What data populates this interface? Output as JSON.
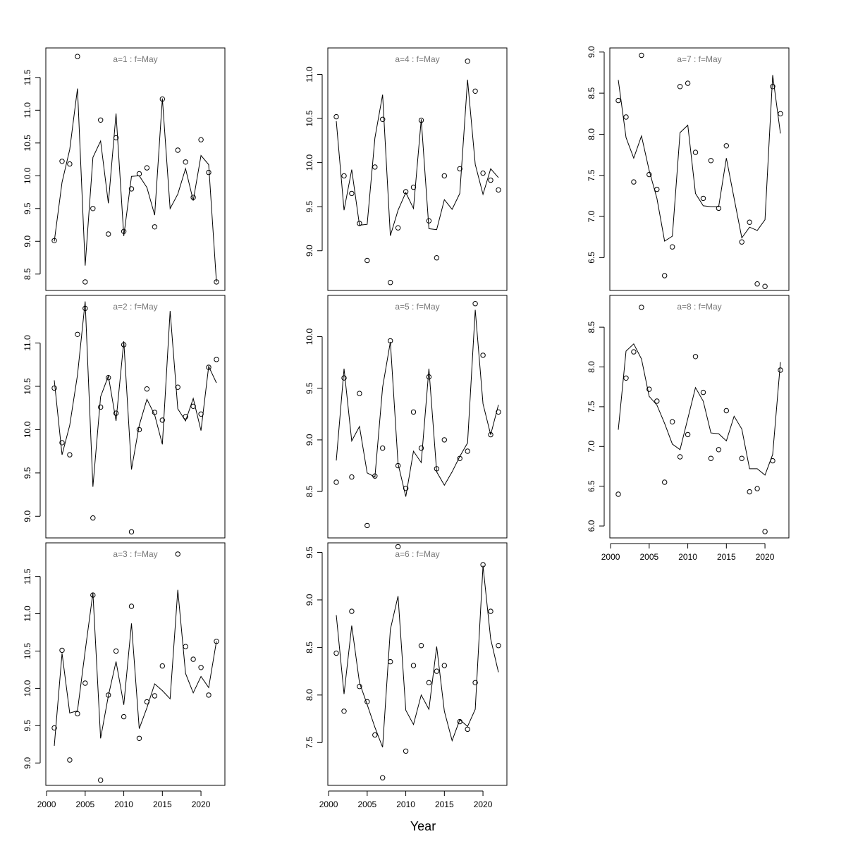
{
  "xlabel": "Year",
  "chart_data": [
    {
      "type": "scatter",
      "title": "a=1  :  f=May",
      "x": [
        2001,
        2002,
        2003,
        2004,
        2005,
        2006,
        2007,
        2008,
        2009,
        2010,
        2011,
        2012,
        2013,
        2014,
        2015,
        2016,
        2017,
        2018,
        2019,
        2020,
        2021,
        2022
      ],
      "xlim": [
        1999.9,
        2023.1
      ],
      "ylim": [
        8.25,
        11.95
      ],
      "xticks": [
        2000,
        2005,
        2010,
        2015,
        2020
      ],
      "yticks": [
        8.5,
        9.0,
        9.5,
        10.0,
        10.5,
        11.0,
        11.5
      ],
      "series": [
        {
          "kind": "points",
          "values": [
            9.01,
            10.22,
            10.18,
            11.82,
            8.38,
            9.5,
            10.85,
            9.11,
            10.58,
            9.15,
            9.8,
            10.03,
            10.12,
            9.22,
            11.17,
            null,
            10.39,
            10.21,
            9.67,
            10.55,
            10.05,
            8.38
          ]
        },
        {
          "kind": "line",
          "values": [
            9.0,
            9.9,
            10.4,
            11.33,
            8.63,
            10.28,
            10.53,
            9.58,
            10.95,
            9.08,
            9.99,
            10.0,
            9.82,
            9.4,
            11.18,
            9.5,
            9.72,
            10.11,
            9.62,
            10.31,
            10.17,
            8.38
          ]
        }
      ]
    },
    {
      "type": "scatter",
      "title": "a=2  :  f=May",
      "x": [
        2001,
        2002,
        2003,
        2004,
        2005,
        2006,
        2007,
        2008,
        2009,
        2010,
        2011,
        2012,
        2013,
        2014,
        2015,
        2016,
        2017,
        2018,
        2019,
        2020,
        2021,
        2022
      ],
      "xlim": [
        1999.9,
        2023.1
      ],
      "ylim": [
        8.75,
        11.55
      ],
      "xticks": [
        2000,
        2005,
        2010,
        2015,
        2020
      ],
      "yticks": [
        9.0,
        9.5,
        10.0,
        10.5,
        11.0
      ],
      "series": [
        {
          "kind": "points",
          "values": [
            10.48,
            9.85,
            9.71,
            11.1,
            11.4,
            8.98,
            10.26,
            10.6,
            10.19,
            10.98,
            8.82,
            10.0,
            10.47,
            10.2,
            10.11,
            null,
            10.49,
            10.15,
            10.27,
            10.18,
            10.72,
            10.81
          ]
        },
        {
          "kind": "line",
          "values": [
            10.57,
            9.71,
            10.05,
            10.63,
            11.48,
            9.34,
            10.38,
            10.62,
            10.1,
            11.02,
            9.54,
            10.05,
            10.35,
            10.17,
            9.83,
            11.37,
            10.24,
            10.1,
            10.36,
            9.99,
            10.73,
            10.54
          ]
        }
      ]
    },
    {
      "type": "scatter",
      "title": "a=3  :  f=May",
      "x": [
        2001,
        2002,
        2003,
        2004,
        2005,
        2006,
        2007,
        2008,
        2009,
        2010,
        2011,
        2012,
        2013,
        2014,
        2015,
        2016,
        2017,
        2018,
        2019,
        2020,
        2021,
        2022
      ],
      "xlim": [
        1999.9,
        2023.1
      ],
      "ylim": [
        8.7,
        11.95
      ],
      "xticks": [
        2000,
        2005,
        2010,
        2015,
        2020
      ],
      "yticks": [
        9.0,
        9.5,
        10.0,
        10.5,
        11.0,
        11.5
      ],
      "series": [
        {
          "kind": "points",
          "values": [
            9.47,
            10.51,
            9.04,
            9.66,
            10.07,
            11.25,
            8.77,
            9.91,
            10.5,
            9.62,
            11.1,
            9.33,
            9.82,
            9.9,
            10.3,
            null,
            11.8,
            10.56,
            10.39,
            10.28,
            9.91,
            10.63
          ]
        },
        {
          "kind": "line",
          "values": [
            9.23,
            10.47,
            9.67,
            9.7,
            10.5,
            11.28,
            9.33,
            9.9,
            10.36,
            9.78,
            10.87,
            9.46,
            9.74,
            10.06,
            9.97,
            9.86,
            11.32,
            10.2,
            9.94,
            10.16,
            10.01,
            10.63
          ]
        }
      ]
    },
    {
      "type": "scatter",
      "title": "a=4  :  f=May",
      "x": [
        2001,
        2002,
        2003,
        2004,
        2005,
        2006,
        2007,
        2008,
        2009,
        2010,
        2011,
        2012,
        2013,
        2014,
        2015,
        2016,
        2017,
        2018,
        2019,
        2020,
        2021,
        2022
      ],
      "xlim": [
        1999.9,
        2023.1
      ],
      "ylim": [
        8.55,
        11.3
      ],
      "xticks": [
        2000,
        2005,
        2010,
        2015,
        2020
      ],
      "yticks": [
        9.0,
        9.5,
        10.0,
        10.5,
        11.0
      ],
      "series": [
        {
          "kind": "points",
          "values": [
            10.52,
            9.85,
            9.65,
            9.31,
            8.89,
            9.95,
            10.49,
            8.64,
            9.26,
            9.67,
            9.72,
            10.48,
            9.34,
            8.92,
            9.85,
            null,
            9.93,
            11.15,
            10.81,
            9.88,
            9.8,
            9.69
          ]
        },
        {
          "kind": "line",
          "values": [
            10.47,
            9.46,
            9.92,
            9.29,
            9.3,
            10.28,
            10.77,
            9.17,
            9.46,
            9.66,
            9.48,
            10.49,
            9.25,
            9.24,
            9.58,
            9.47,
            9.65,
            10.94,
            9.98,
            9.64,
            9.93,
            9.83
          ]
        }
      ]
    },
    {
      "type": "scatter",
      "title": "a=5  :  f=May",
      "x": [
        2001,
        2002,
        2003,
        2004,
        2005,
        2006,
        2007,
        2008,
        2009,
        2010,
        2011,
        2012,
        2013,
        2014,
        2015,
        2016,
        2017,
        2018,
        2019,
        2020,
        2021,
        2022
      ],
      "xlim": [
        1999.9,
        2023.1
      ],
      "ylim": [
        8.05,
        10.4
      ],
      "xticks": [
        2000,
        2005,
        2010,
        2015,
        2020
      ],
      "yticks": [
        8.5,
        9.0,
        9.5,
        10.0
      ],
      "series": [
        {
          "kind": "points",
          "values": [
            8.59,
            9.6,
            8.64,
            9.45,
            8.17,
            8.65,
            8.92,
            9.96,
            8.75,
            8.53,
            9.27,
            8.92,
            9.61,
            8.72,
            9.0,
            null,
            8.82,
            8.89,
            10.32,
            9.82,
            9.05,
            9.27
          ]
        },
        {
          "kind": "line",
          "values": [
            8.8,
            9.69,
            8.99,
            9.13,
            8.68,
            8.64,
            9.51,
            9.95,
            8.77,
            8.45,
            8.89,
            8.78,
            9.69,
            8.69,
            8.56,
            8.69,
            8.84,
            8.97,
            10.26,
            9.35,
            9.05,
            9.34
          ]
        }
      ]
    },
    {
      "type": "scatter",
      "title": "a=6  :  f=May",
      "x": [
        2001,
        2002,
        2003,
        2004,
        2005,
        2006,
        2007,
        2008,
        2009,
        2010,
        2011,
        2012,
        2013,
        2014,
        2015,
        2016,
        2017,
        2018,
        2019,
        2020,
        2021,
        2022
      ],
      "xlim": [
        1999.9,
        2023.1
      ],
      "ylim": [
        7.05,
        9.6
      ],
      "xticks": [
        2000,
        2005,
        2010,
        2015,
        2020
      ],
      "yticks": [
        7.5,
        8.0,
        8.5,
        9.0,
        9.5
      ],
      "series": [
        {
          "kind": "points",
          "values": [
            8.44,
            7.83,
            8.88,
            8.09,
            7.93,
            7.58,
            7.13,
            8.35,
            9.56,
            7.41,
            8.31,
            8.52,
            8.13,
            8.25,
            8.31,
            null,
            7.72,
            7.64,
            8.13,
            9.37,
            8.88,
            8.52
          ]
        },
        {
          "kind": "line",
          "values": [
            8.84,
            8.01,
            8.73,
            8.13,
            7.9,
            7.66,
            7.45,
            8.69,
            9.04,
            7.84,
            7.69,
            8.0,
            7.85,
            8.51,
            7.83,
            7.52,
            7.74,
            7.67,
            7.85,
            9.36,
            8.59,
            8.24
          ]
        }
      ]
    },
    {
      "type": "scatter",
      "title": "a=7  :  f=May",
      "x": [
        2001,
        2002,
        2003,
        2004,
        2005,
        2006,
        2007,
        2008,
        2009,
        2010,
        2011,
        2012,
        2013,
        2014,
        2015,
        2016,
        2017,
        2018,
        2019,
        2020,
        2021,
        2022
      ],
      "xlim": [
        1999.9,
        2023.1
      ],
      "ylim": [
        6.1,
        9.05
      ],
      "xticks": [
        2000,
        2005,
        2010,
        2015,
        2020
      ],
      "yticks": [
        6.5,
        7.0,
        7.5,
        8.0,
        8.5,
        9.0
      ],
      "series": [
        {
          "kind": "points",
          "values": [
            8.41,
            8.21,
            7.42,
            8.96,
            7.51,
            7.33,
            6.28,
            6.63,
            8.58,
            8.62,
            7.78,
            7.22,
            7.68,
            7.1,
            7.86,
            null,
            6.69,
            6.93,
            6.18,
            6.15,
            8.58,
            8.25
          ]
        },
        {
          "kind": "line",
          "values": [
            8.66,
            7.96,
            7.71,
            7.98,
            7.56,
            7.22,
            6.7,
            6.76,
            8.02,
            8.11,
            7.28,
            7.13,
            7.12,
            7.12,
            7.71,
            7.22,
            6.74,
            6.87,
            6.83,
            6.96,
            8.72,
            8.01
          ]
        }
      ]
    },
    {
      "type": "scatter",
      "title": "a=8  :  f=May",
      "x": [
        2001,
        2002,
        2003,
        2004,
        2005,
        2006,
        2007,
        2008,
        2009,
        2010,
        2011,
        2012,
        2013,
        2014,
        2015,
        2016,
        2017,
        2018,
        2019,
        2020,
        2021,
        2022
      ],
      "xlim": [
        1999.9,
        2023.1
      ],
      "ylim": [
        5.85,
        8.9
      ],
      "xticks": [
        2000,
        2005,
        2010,
        2015,
        2020
      ],
      "yticks": [
        6.0,
        6.5,
        7.0,
        7.5,
        8.0,
        8.5
      ],
      "series": [
        {
          "kind": "points",
          "values": [
            6.4,
            7.86,
            8.19,
            8.75,
            7.72,
            7.57,
            6.55,
            7.31,
            6.87,
            7.15,
            8.13,
            7.68,
            6.85,
            6.96,
            7.45,
            null,
            6.85,
            6.43,
            6.47,
            5.93,
            6.82,
            7.96
          ]
        },
        {
          "kind": "line",
          "values": [
            7.21,
            8.2,
            8.29,
            8.1,
            7.63,
            7.52,
            7.29,
            7.03,
            6.96,
            7.35,
            7.74,
            7.57,
            7.17,
            7.16,
            7.07,
            7.38,
            7.22,
            6.72,
            6.72,
            6.64,
            6.9,
            8.06
          ]
        }
      ]
    }
  ]
}
